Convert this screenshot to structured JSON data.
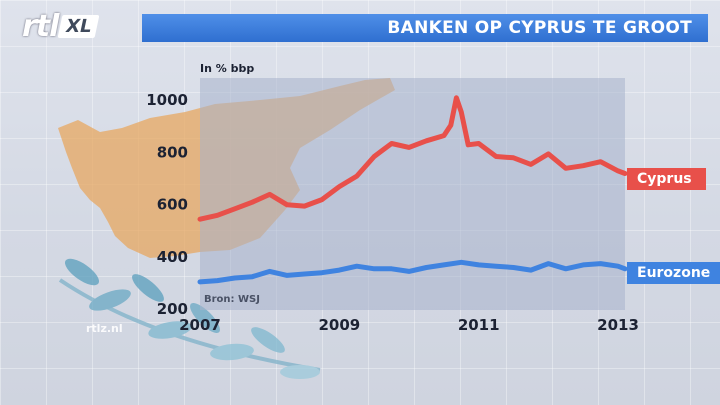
{
  "logo": {
    "main": "rtl",
    "badge": "XL"
  },
  "title": "BANKEN OP CYPRUS TE GROOT",
  "watermark": "rtlz.nl",
  "colors": {
    "cyprus": "#e8504a",
    "eurozone": "#3f83e0",
    "title_bar": "#2f6fd0"
  },
  "chart_data": {
    "type": "line",
    "title": "BANKEN OP CYPRUS TE GROOT",
    "ylabel": "In % bbp",
    "xlabel": "",
    "source": "Bron: WSJ",
    "xlim": [
      2007,
      2013.1
    ],
    "ylim": [
      200,
      1050
    ],
    "x_ticks": [
      "2007",
      "2009",
      "2011",
      "2013"
    ],
    "y_ticks": [
      "200",
      "400",
      "600",
      "800",
      "1000"
    ],
    "series": [
      {
        "name": "Cyprus",
        "x": [
          2007.0,
          2007.25,
          2007.5,
          2007.75,
          2008.0,
          2008.25,
          2008.5,
          2008.75,
          2009.0,
          2009.25,
          2009.5,
          2009.75,
          2010.0,
          2010.25,
          2010.5,
          2010.6,
          2010.68,
          2010.75,
          2010.85,
          2011.0,
          2011.25,
          2011.5,
          2011.75,
          2012.0,
          2012.25,
          2012.5,
          2012.75,
          2013.0,
          2013.1
        ],
        "values": [
          540,
          555,
          580,
          605,
          635,
          595,
          590,
          615,
          665,
          705,
          780,
          830,
          815,
          840,
          860,
          900,
          1005,
          950,
          825,
          830,
          780,
          775,
          750,
          790,
          735,
          745,
          760,
          725,
          715
        ]
      },
      {
        "name": "Eurozone",
        "x": [
          2007.0,
          2007.25,
          2007.5,
          2007.75,
          2008.0,
          2008.25,
          2008.5,
          2008.75,
          2009.0,
          2009.25,
          2009.5,
          2009.75,
          2010.0,
          2010.25,
          2010.5,
          2010.75,
          2011.0,
          2011.25,
          2011.5,
          2011.75,
          2012.0,
          2012.25,
          2012.5,
          2012.75,
          2013.0,
          2013.1
        ],
        "values": [
          300,
          305,
          315,
          320,
          340,
          325,
          330,
          335,
          345,
          360,
          350,
          350,
          340,
          355,
          365,
          375,
          365,
          360,
          355,
          345,
          370,
          350,
          365,
          370,
          360,
          350
        ]
      }
    ],
    "grid": false,
    "legend": "right-end labels"
  }
}
